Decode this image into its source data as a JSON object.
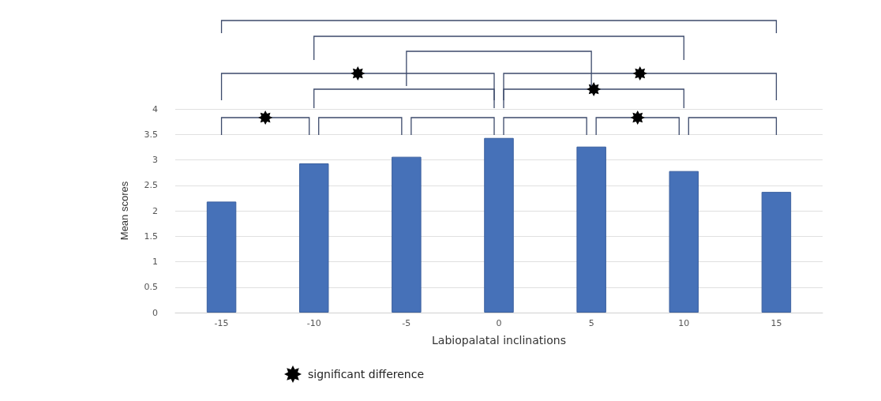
{
  "chart_data": {
    "type": "bar",
    "xlabel": "Labiopalatal inclinations",
    "ylabel": "Mean scores",
    "categories": [
      "-15",
      "-10",
      "-5",
      "0",
      "5",
      "10",
      "15"
    ],
    "values": [
      2.18,
      2.93,
      3.06,
      3.43,
      3.26,
      2.78,
      2.37
    ],
    "color": "#4671b8",
    "ylim": [
      0,
      4
    ],
    "yticks": [
      0,
      0.5,
      1,
      1.5,
      2,
      2.5,
      3,
      3.5,
      4
    ],
    "grid": "y",
    "annotations": [
      "significant difference"
    ]
  }
}
